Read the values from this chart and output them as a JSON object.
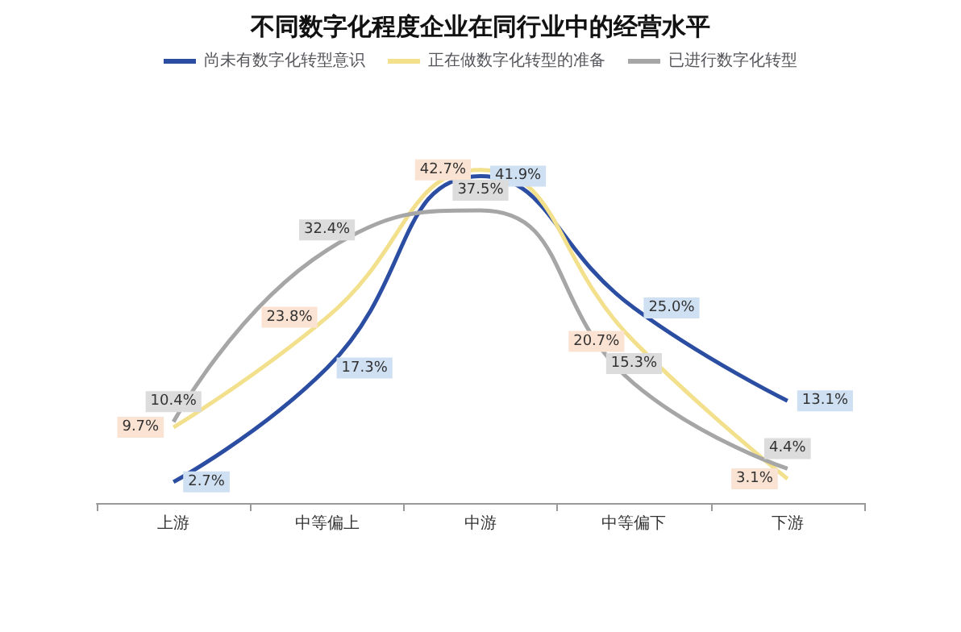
{
  "chart_data": {
    "type": "line",
    "title": "不同数字化程度企业在同行业中的经营水平",
    "categories": [
      "上游",
      "中等偏上",
      "中游",
      "中等偏下",
      "下游"
    ],
    "series": [
      {
        "name": "尚未有数字化转型意识",
        "color": "#2b4ea2",
        "values": [
          2.7,
          17.3,
          41.9,
          25.0,
          13.1
        ],
        "value_labels": [
          "2.7%",
          "17.3%",
          "41.9%",
          "25.0%",
          "13.1%"
        ]
      },
      {
        "name": "正在做数字化转型的准备",
        "color": "#f3e08c",
        "values": [
          9.7,
          23.8,
          42.7,
          20.7,
          3.1
        ],
        "value_labels": [
          "9.7%",
          "23.8%",
          "42.7%",
          "20.7%",
          "3.1%"
        ]
      },
      {
        "name": "已进行数字化转型",
        "color": "#a6a6a6",
        "values": [
          10.4,
          32.4,
          37.5,
          15.3,
          4.4
        ],
        "value_labels": [
          "10.4%",
          "32.4%",
          "37.5%",
          "15.3%",
          "4.4%"
        ]
      }
    ],
    "legend": "top",
    "grid": false,
    "marker": "none",
    "line_style": "solid",
    "tick_labels": "x"
  }
}
